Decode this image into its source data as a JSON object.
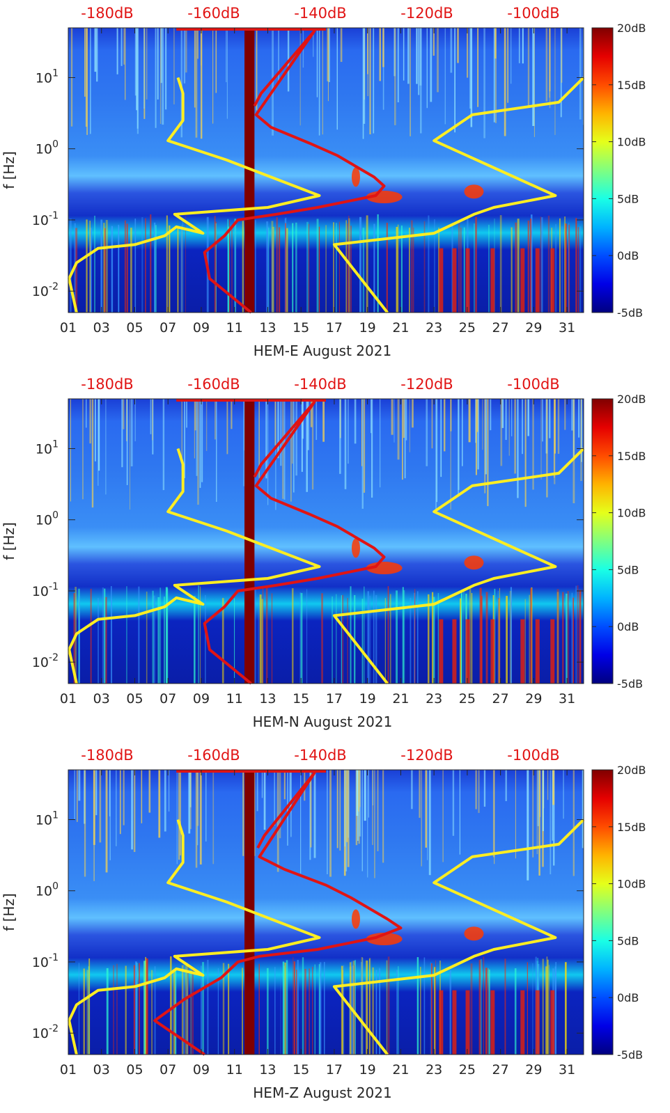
{
  "chart_data": [
    {
      "type": "heatmap",
      "title": "",
      "xlabel": "HEM-E August 2021",
      "ylabel": "f [Hz]",
      "x_ticks": [
        "01",
        "03",
        "05",
        "07",
        "09",
        "11",
        "13",
        "15",
        "17",
        "19",
        "21",
        "23",
        "25",
        "27",
        "29",
        "31"
      ],
      "x_range": [
        1,
        32
      ],
      "y_scale": "log",
      "y_range": [
        0.005,
        50
      ],
      "y_ticks": [
        {
          "value": 0.01,
          "base": "10",
          "exp": "-2"
        },
        {
          "value": 0.1,
          "base": "10",
          "exp": "-1"
        },
        {
          "value": 1,
          "base": "10",
          "exp": "0"
        },
        {
          "value": 10,
          "base": "10",
          "exp": "1"
        }
      ],
      "top_axis_labels": [
        "-180dB",
        "-160dB",
        "-140dB",
        "-120dB",
        "-100dB"
      ],
      "colorbar": {
        "range": [
          -5,
          20
        ],
        "ticks": [
          "20dB",
          "15dB",
          "10dB",
          "5dB",
          "0dB",
          "-5dB"
        ]
      },
      "gap_band_days": [
        11.6,
        12.2
      ],
      "series": [
        {
          "name": "yellow reference",
          "color": "#ffee22",
          "points": [
            [
              7.6,
              10
            ],
            [
              7.9,
              6
            ],
            [
              7.9,
              2.5
            ],
            [
              7.0,
              1.3
            ],
            [
              10.5,
              0.7
            ],
            [
              16.1,
              0.22
            ],
            [
              13,
              0.15
            ],
            [
              7.4,
              0.12
            ],
            [
              9.1,
              0.065
            ],
            [
              7.5,
              0.08
            ],
            [
              6.8,
              0.06
            ],
            [
              5,
              0.045
            ],
            [
              2.8,
              0.04
            ],
            [
              1.5,
              0.025
            ],
            [
              1.05,
              0.015
            ],
            [
              1.5,
              0.005
            ]
          ]
        },
        {
          "name": "red profile",
          "color": "#e01414",
          "points": [
            [
              12.2,
              4
            ],
            [
              12.6,
              6
            ],
            [
              15.8,
              45
            ],
            [
              12.3,
              3
            ],
            [
              13.2,
              2
            ],
            [
              15.5,
              1.2
            ],
            [
              17.2,
              0.8
            ],
            [
              19.4,
              0.4
            ],
            [
              20.0,
              0.3
            ],
            [
              19.5,
              0.22
            ],
            [
              16.0,
              0.15
            ],
            [
              13.5,
              0.12
            ],
            [
              11.2,
              0.1
            ],
            [
              10.4,
              0.06
            ],
            [
              9.2,
              0.035
            ],
            [
              9.4,
              0.02
            ],
            [
              9.5,
              0.015
            ],
            [
              12.0,
              0.005
            ]
          ]
        },
        {
          "name": "yellow reference 2",
          "color": "#ffee22",
          "points": [
            [
              32,
              10
            ],
            [
              30.5,
              4.5
            ],
            [
              25.3,
              3
            ],
            [
              23.0,
              1.3
            ],
            [
              30.3,
              0.22
            ],
            [
              26.6,
              0.15
            ],
            [
              25.4,
              0.12
            ],
            [
              23.0,
              0.065
            ],
            [
              17.0,
              0.045
            ],
            [
              20.2,
              0.005
            ]
          ]
        }
      ]
    },
    {
      "type": "heatmap",
      "title": "",
      "xlabel": "HEM-N August 2021",
      "ylabel": "f [Hz]",
      "x_ticks": [
        "01",
        "03",
        "05",
        "07",
        "09",
        "11",
        "13",
        "15",
        "17",
        "19",
        "21",
        "23",
        "25",
        "27",
        "29",
        "31"
      ],
      "x_range": [
        1,
        32
      ],
      "y_scale": "log",
      "y_range": [
        0.005,
        50
      ],
      "y_ticks": [
        {
          "value": 0.01,
          "base": "10",
          "exp": "-2"
        },
        {
          "value": 0.1,
          "base": "10",
          "exp": "-1"
        },
        {
          "value": 1,
          "base": "10",
          "exp": "0"
        },
        {
          "value": 10,
          "base": "10",
          "exp": "1"
        }
      ],
      "top_axis_labels": [
        "-180dB",
        "-160dB",
        "-140dB",
        "-120dB",
        "-100dB"
      ],
      "colorbar": {
        "range": [
          -5,
          20
        ],
        "ticks": [
          "20dB",
          "15dB",
          "10dB",
          "5dB",
          "0dB",
          "-5dB"
        ]
      },
      "gap_band_days": [
        11.6,
        12.2
      ],
      "series": [
        {
          "name": "yellow reference",
          "color": "#ffee22",
          "points": [
            [
              7.6,
              10
            ],
            [
              7.9,
              6
            ],
            [
              7.9,
              2.5
            ],
            [
              7.0,
              1.3
            ],
            [
              10.5,
              0.7
            ],
            [
              16.1,
              0.22
            ],
            [
              13,
              0.15
            ],
            [
              7.4,
              0.12
            ],
            [
              9.1,
              0.065
            ],
            [
              7.5,
              0.08
            ],
            [
              6.8,
              0.06
            ],
            [
              5,
              0.045
            ],
            [
              2.8,
              0.04
            ],
            [
              1.5,
              0.025
            ],
            [
              1.05,
              0.015
            ],
            [
              1.5,
              0.005
            ]
          ]
        },
        {
          "name": "red profile",
          "color": "#e01414",
          "points": [
            [
              12.2,
              4
            ],
            [
              12.6,
              6
            ],
            [
              15.8,
              45
            ],
            [
              12.3,
              3
            ],
            [
              13.2,
              2
            ],
            [
              15.5,
              1.2
            ],
            [
              17.2,
              0.8
            ],
            [
              19.4,
              0.4
            ],
            [
              20.0,
              0.3
            ],
            [
              19.5,
              0.22
            ],
            [
              16.0,
              0.15
            ],
            [
              13.5,
              0.12
            ],
            [
              11.2,
              0.1
            ],
            [
              10.4,
              0.06
            ],
            [
              9.2,
              0.035
            ],
            [
              9.4,
              0.02
            ],
            [
              9.5,
              0.015
            ],
            [
              12.0,
              0.005
            ]
          ]
        },
        {
          "name": "yellow reference 2",
          "color": "#ffee22",
          "points": [
            [
              32,
              10
            ],
            [
              30.5,
              4.5
            ],
            [
              25.3,
              3
            ],
            [
              23.0,
              1.3
            ],
            [
              30.3,
              0.22
            ],
            [
              26.6,
              0.15
            ],
            [
              25.4,
              0.12
            ],
            [
              23.0,
              0.065
            ],
            [
              17.0,
              0.045
            ],
            [
              20.2,
              0.005
            ]
          ]
        }
      ]
    },
    {
      "type": "heatmap",
      "title": "",
      "xlabel": "HEM-Z August 2021",
      "ylabel": "f [Hz]",
      "x_ticks": [
        "01",
        "03",
        "05",
        "07",
        "09",
        "11",
        "13",
        "15",
        "17",
        "19",
        "21",
        "23",
        "25",
        "27",
        "29",
        "31"
      ],
      "x_range": [
        1,
        32
      ],
      "y_scale": "log",
      "y_range": [
        0.005,
        50
      ],
      "y_ticks": [
        {
          "value": 0.01,
          "base": "10",
          "exp": "-2"
        },
        {
          "value": 0.1,
          "base": "10",
          "exp": "-1"
        },
        {
          "value": 1,
          "base": "10",
          "exp": "0"
        },
        {
          "value": 10,
          "base": "10",
          "exp": "1"
        }
      ],
      "top_axis_labels": [
        "-180dB",
        "-160dB",
        "-140dB",
        "-120dB",
        "-100dB"
      ],
      "colorbar": {
        "range": [
          -5,
          20
        ],
        "ticks": [
          "20dB",
          "15dB",
          "10dB",
          "5dB",
          "0dB",
          "-5dB"
        ]
      },
      "gap_band_days": [
        11.6,
        12.2
      ],
      "series": [
        {
          "name": "yellow reference",
          "color": "#ffee22",
          "points": [
            [
              7.6,
              10
            ],
            [
              7.9,
              6
            ],
            [
              7.9,
              2.5
            ],
            [
              7.0,
              1.3
            ],
            [
              10.5,
              0.7
            ],
            [
              16.1,
              0.22
            ],
            [
              13,
              0.15
            ],
            [
              7.4,
              0.12
            ],
            [
              9.1,
              0.065
            ],
            [
              7.5,
              0.08
            ],
            [
              6.8,
              0.06
            ],
            [
              5,
              0.045
            ],
            [
              2.8,
              0.04
            ],
            [
              1.5,
              0.025
            ],
            [
              1.05,
              0.015
            ],
            [
              1.5,
              0.005
            ]
          ]
        },
        {
          "name": "red profile",
          "color": "#e01414",
          "points": [
            [
              12.4,
              4
            ],
            [
              12.8,
              6
            ],
            [
              15.8,
              45
            ],
            [
              12.5,
              3
            ],
            [
              14.0,
              2
            ],
            [
              16.5,
              1.2
            ],
            [
              18.0,
              0.8
            ],
            [
              20.2,
              0.4
            ],
            [
              21.0,
              0.3
            ],
            [
              19.5,
              0.22
            ],
            [
              16.0,
              0.15
            ],
            [
              12.5,
              0.12
            ],
            [
              11.2,
              0.1
            ],
            [
              10.2,
              0.06
            ],
            [
              8.0,
              0.03
            ],
            [
              6.2,
              0.015
            ],
            [
              9.2,
              0.005
            ]
          ]
        },
        {
          "name": "yellow reference 2",
          "color": "#ffee22",
          "points": [
            [
              32,
              10
            ],
            [
              30.5,
              4.5
            ],
            [
              25.3,
              3
            ],
            [
              23.0,
              1.3
            ],
            [
              30.3,
              0.22
            ],
            [
              26.6,
              0.15
            ],
            [
              25.4,
              0.12
            ],
            [
              23.0,
              0.065
            ],
            [
              17.0,
              0.045
            ],
            [
              20.2,
              0.005
            ]
          ]
        }
      ]
    }
  ]
}
